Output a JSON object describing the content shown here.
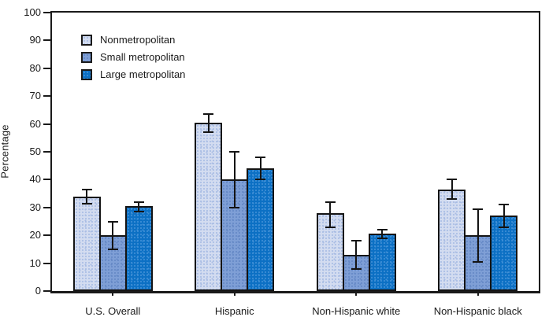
{
  "chart_data": {
    "type": "bar",
    "title": "",
    "ylabel": "Percentage",
    "xlabel": "",
    "ylim": [
      0,
      100
    ],
    "ytick_step": 10,
    "grid": false,
    "legend_position": "top-left",
    "error_bars": true,
    "frame": true,
    "axis_color": "#1a1a1a",
    "categories": [
      "U.S. Overall",
      "Hispanic",
      "Non-Hispanic white",
      "Non-Hispanic black"
    ],
    "series": [
      {
        "name": "Nonmetropolitan",
        "fill": "#d3dcf0",
        "speckle": "#a9bde4",
        "values": [
          34,
          60.5,
          28,
          36.5
        ],
        "err_low": [
          31.5,
          57,
          23,
          33
        ],
        "err_high": [
          36.5,
          63.5,
          32,
          40
        ]
      },
      {
        "name": "Small metropolitan",
        "fill": "#7f9fd6",
        "speckle": "#6588c6",
        "values": [
          20,
          40,
          13,
          20
        ],
        "err_low": [
          15,
          30,
          8,
          10.5
        ],
        "err_high": [
          25,
          50,
          18,
          29.5
        ]
      },
      {
        "name": "Large metropolitan",
        "fill": "#0c70c4",
        "speckle": "#3f8fd6",
        "values": [
          30.5,
          44,
          20.5,
          27
        ],
        "err_low": [
          28.5,
          40,
          19,
          23
        ],
        "err_high": [
          32,
          48,
          22,
          31
        ]
      }
    ]
  }
}
